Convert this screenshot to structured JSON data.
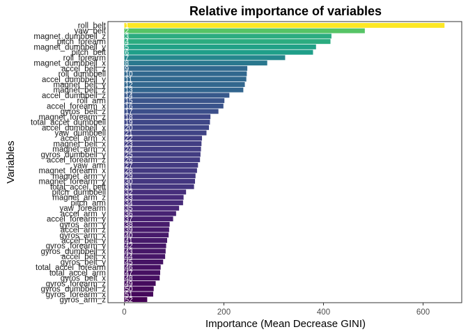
{
  "chart_data": {
    "type": "bar",
    "orientation": "horizontal",
    "title": "Relative importance of variables",
    "xlabel": "Importance (Mean Decrease GINI)",
    "ylabel": "Variables",
    "xlim": [
      0,
      665
    ],
    "xticks": [
      0,
      200,
      400,
      600
    ],
    "grid": false,
    "legend": "none",
    "colormap": "viridis",
    "categories": [
      "roll_belt",
      "yaw_belt",
      "magnet_dumbbell_z",
      "pitch_forearm",
      "magnet_dumbbell_y",
      "pitch_belt",
      "roll_forearm",
      "magnet_dumbbell_x",
      "accel_belt_z",
      "roll_dumbbell",
      "accel_dumbbell_y",
      "magnet_belt_y",
      "magnet_belt_z",
      "accel_dumbbell_z",
      "roll_arm",
      "accel_forearm_x",
      "gyros_belt_z",
      "magnet_forearm_z",
      "total_accel_dumbbell",
      "accel_dumbbell_x",
      "yaw_dumbbell",
      "accel_arm_x",
      "magnet_belt_x",
      "magnet_arm_x",
      "gyros_dumbbell_y",
      "accel_forearm_z",
      "yaw_arm",
      "magnet_forearm_x",
      "magnet_arm_y",
      "magnet_forearm_y",
      "total_accel_belt",
      "pitch_dumbbell",
      "magnet_arm_z",
      "pitch_arm",
      "yaw_forearm",
      "accel_arm_y",
      "accel_forearm_y",
      "gyros_arm_y",
      "accel_arm_z",
      "gyros_arm_x",
      "accel_belt_y",
      "gyros_forearm_y",
      "gyros_dumbbell_x",
      "accel_belt_x",
      "gyros_belt_y",
      "total_accel_forearm",
      "total_accel_arm",
      "gyros_belt_x",
      "gyros_forearm_z",
      "gyros_dumbbell_z",
      "gyros_forearm_x",
      "gyros_arm_z"
    ],
    "ranks": [
      "1",
      "2",
      "3",
      "4",
      "5",
      "6",
      "7",
      "8",
      "9",
      "10",
      "11",
      "12",
      "13",
      "14",
      "15",
      "16",
      "17",
      "18",
      "19",
      "20",
      "21",
      "22",
      "23",
      "24",
      "25",
      "26",
      "27",
      "28",
      "29",
      "30",
      "31",
      "32",
      "33",
      "34",
      "35",
      "36",
      "37",
      "38",
      "39",
      "40",
      "41",
      "42",
      "43",
      "44",
      "45",
      "46",
      "47",
      "48",
      "49",
      "50",
      "51",
      "52"
    ],
    "values": [
      643,
      483,
      416,
      414,
      385,
      379,
      323,
      287,
      247,
      246,
      245,
      242,
      239,
      211,
      201,
      199,
      189,
      173,
      172,
      170,
      165,
      156,
      155,
      154,
      153,
      152,
      148,
      146,
      143,
      142,
      140,
      124,
      119,
      118,
      110,
      104,
      98,
      91,
      90,
      89,
      86,
      84,
      83,
      82,
      78,
      73,
      72,
      71,
      63,
      59,
      58,
      46
    ]
  }
}
